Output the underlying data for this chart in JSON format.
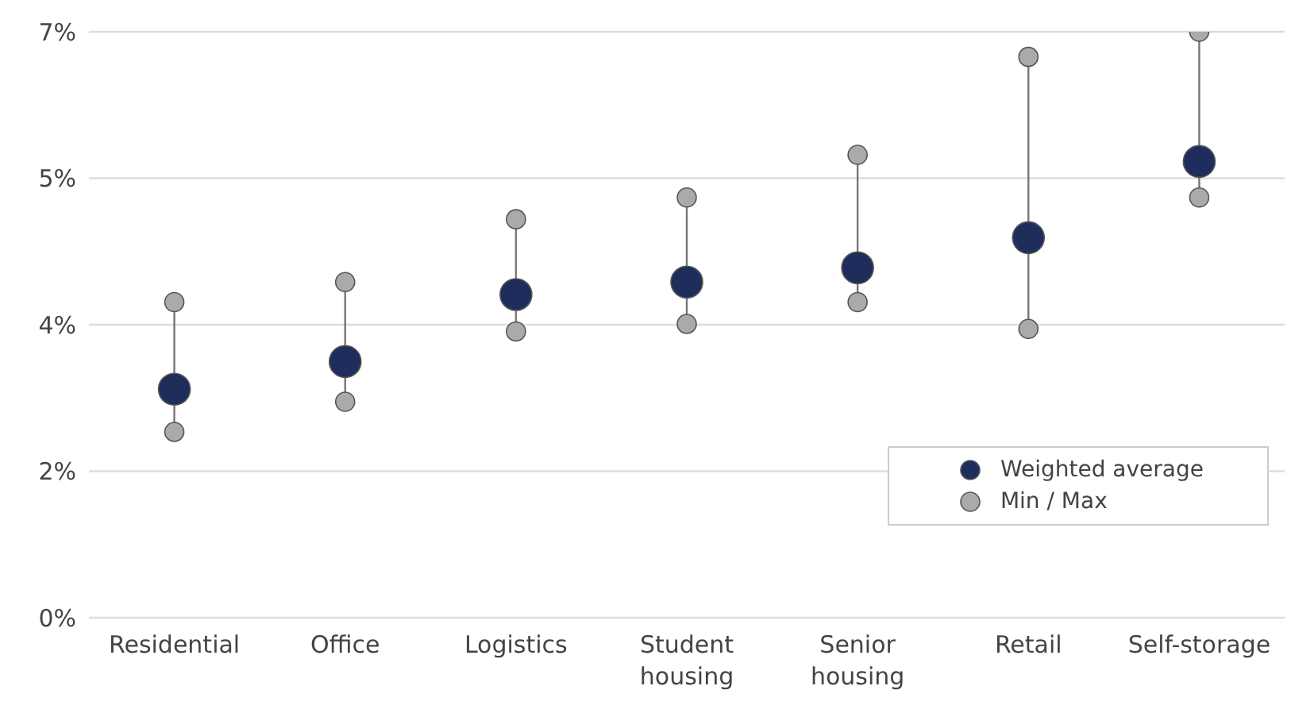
{
  "chart_data": {
    "type": "scatter",
    "categories": [
      "Residential",
      "Office",
      "Logistics",
      "Student housing",
      "Senior housing",
      "Retail",
      "Self-storage"
    ],
    "series": [
      {
        "name": "Weighted average",
        "color": "#1f2d5c",
        "values": [
          2.73,
          3.06,
          3.86,
          4.01,
          4.18,
          4.54,
          5.45
        ]
      },
      {
        "name": "Min / Max",
        "color": "#aaaaaa",
        "x": [
          "Residential",
          "Residential",
          "Office",
          "Office",
          "Logistics",
          "Logistics",
          "Student housing",
          "Student housing",
          "Senior housing",
          "Senior housing",
          "Retail",
          "Retail",
          "Self-storage",
          "Self-storage"
        ],
        "values": [
          2.22,
          3.77,
          2.58,
          4.01,
          3.42,
          4.76,
          3.51,
          5.02,
          3.77,
          5.53,
          3.45,
          6.7,
          5.02,
          7
        ]
      }
    ],
    "ylim": [
      0,
      7
    ],
    "yticks": [
      {
        "value": 0,
        "label": "0%"
      },
      {
        "value": 1.75,
        "label": "2%"
      },
      {
        "value": 3.5,
        "label": "4%"
      },
      {
        "value": 5.25,
        "label": "5%"
      },
      {
        "value": 7,
        "label": "7%"
      }
    ],
    "grid": "y",
    "legend": "bottom right",
    "marker": "circle"
  }
}
